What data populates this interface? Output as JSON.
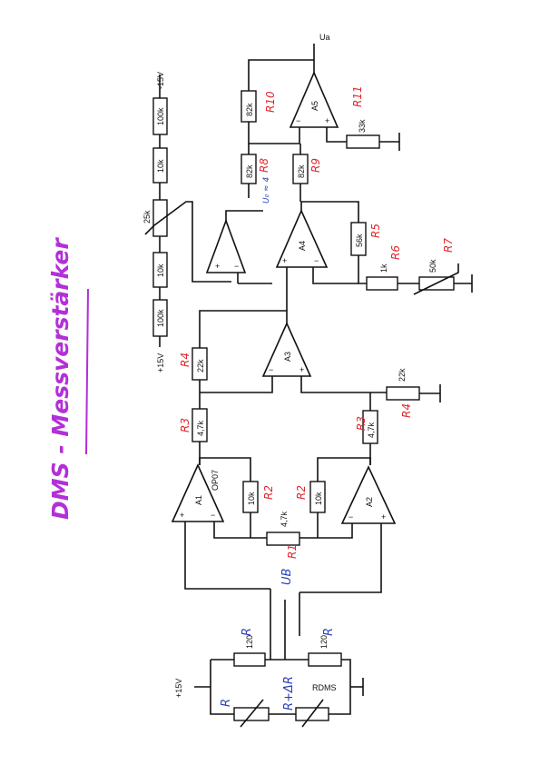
{
  "title": "DMS - Messverstärker",
  "colors": {
    "annotation_red": "#e3262c",
    "annotation_blue": "#2a3fb8",
    "title_purple": "#b32fd8",
    "ink": "#111111"
  },
  "supply": {
    "pos": "+15V",
    "neg": "-15V",
    "bridge": "+15V",
    "output": "Ua"
  },
  "amps": {
    "a1": "A1",
    "a2": "A2",
    "a3": "A3",
    "a4": "A4",
    "a5": "A5",
    "a1_type": "OP07"
  },
  "resistors": {
    "r100k_top": "100k",
    "r10k_top": "10k",
    "r25k": "25k",
    "r10k_mid": "10k",
    "r100k_bot": "100k",
    "r82k_a": "82k",
    "r82k_b": "82k",
    "r82k_c": "82k",
    "r33k": "33k",
    "r56k": "56k",
    "r1k": "1k",
    "r50k": "50k",
    "r22k_a": "22k",
    "r22k_b": "22k",
    "r47k_a": "4,7k",
    "r47k_b": "4,7k",
    "r10k_a": "10k",
    "r10k_b": "10k",
    "r47k_gain": "4,7k",
    "r120_a": "120",
    "r120_b": "120",
    "rdms": "RDMS"
  },
  "labels_red": {
    "R1": "R1",
    "R2a": "R2",
    "R2b": "R2",
    "R3a": "R3",
    "R3b": "R3",
    "R4a": "R4",
    "R4b": "R4",
    "R5": "R5",
    "R6": "R6",
    "R7": "R7",
    "R8": "R8",
    "R9": "R9",
    "R10": "R10",
    "R11": "R11"
  },
  "labels_blue": {
    "R_top_left": "R",
    "R_top_right": "R",
    "R_bottom_left": "R",
    "R_dR": "R+ΔR",
    "UB": "UB",
    "U_out": "U₀ ≈ 4"
  }
}
